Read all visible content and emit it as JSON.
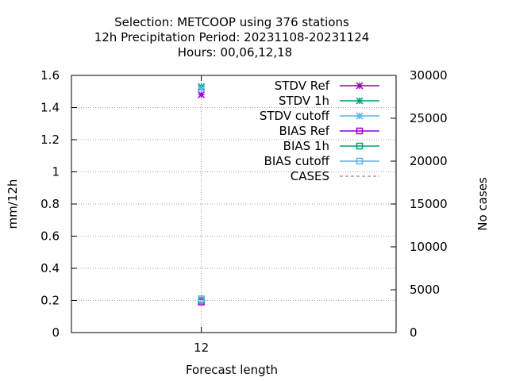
{
  "chart_data": {
    "type": "scatter",
    "title_lines": [
      "Selection: METCOOP using   376 stations",
      "12h Precipitation   Period: 20231108-20231124",
      "Hours:  00,06,12,18"
    ],
    "xlabel": "Forecast length",
    "ylabel": "mm/12h",
    "y2label": "No cases",
    "x_ticks": [
      "12"
    ],
    "x_tick_values": [
      12
    ],
    "xlim": [
      8,
      18
    ],
    "ylim": [
      0,
      1.6
    ],
    "y_ticks": [
      "0",
      "0.2",
      "0.4",
      "0.6",
      "0.8",
      "1",
      "1.2",
      "1.4",
      "1.6"
    ],
    "y2lim": [
      0,
      30000
    ],
    "y2_ticks": [
      "0",
      "5000",
      "10000",
      "15000",
      "20000",
      "25000",
      "30000"
    ],
    "grid": true,
    "legend_position": "top-right",
    "series": [
      {
        "name": "STDV Ref",
        "marker": "star",
        "color": "#9400d3",
        "dashed": false,
        "axis": "y",
        "points": [
          {
            "x": 12,
            "y": 1.48
          }
        ]
      },
      {
        "name": "STDV 1h",
        "marker": "star",
        "color": "#009e73",
        "dashed": false,
        "axis": "y",
        "points": [
          {
            "x": 12,
            "y": 1.53
          }
        ]
      },
      {
        "name": "STDV cutoff",
        "marker": "star",
        "color": "#56b4e9",
        "dashed": false,
        "axis": "y",
        "points": [
          {
            "x": 12,
            "y": 1.52
          }
        ]
      },
      {
        "name": "BIAS Ref",
        "marker": "square",
        "color": "#9400d3",
        "dashed": false,
        "axis": "y",
        "points": [
          {
            "x": 12,
            "y": 0.19
          }
        ]
      },
      {
        "name": "BIAS 1h",
        "marker": "square",
        "color": "#009e73",
        "dashed": false,
        "axis": "y",
        "points": [
          {
            "x": 12,
            "y": 0.2
          }
        ]
      },
      {
        "name": "BIAS cutoff",
        "marker": "square",
        "color": "#56b4e9",
        "dashed": false,
        "axis": "y",
        "points": [
          {
            "x": 12,
            "y": 0.21
          }
        ]
      },
      {
        "name": "CASES",
        "marker": "none",
        "color": "#a0a0a0",
        "dashed": true,
        "axis": "y2",
        "points": []
      }
    ]
  }
}
